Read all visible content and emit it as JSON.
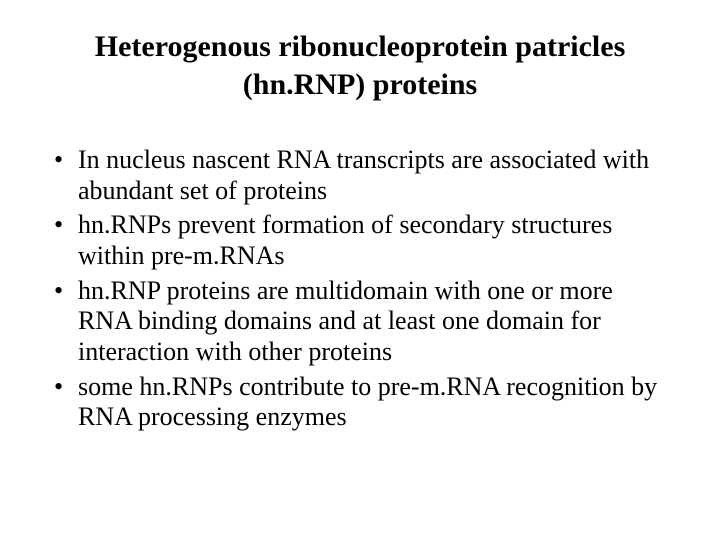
{
  "slide": {
    "background_color": "#ffffff",
    "text_color": "#000000",
    "font_family": "Times New Roman",
    "title": {
      "line1": "Heterogenous ribonucleoprotein patricles",
      "line2": "(hn.RNP) proteins",
      "fontsize": 30,
      "align": "center"
    },
    "bullets": {
      "fontsize": 26,
      "items": [
        "In nucleus nascent RNA transcripts are associated with abundant set of proteins",
        "hn.RNPs prevent formation of secondary structures within pre-m.RNAs",
        "hn.RNP proteins are multidomain with one or more RNA binding domains and at least one domain for interaction with other proteins",
        "some hn.RNPs contribute to pre-m.RNA recognition by RNA processing enzymes"
      ]
    }
  }
}
